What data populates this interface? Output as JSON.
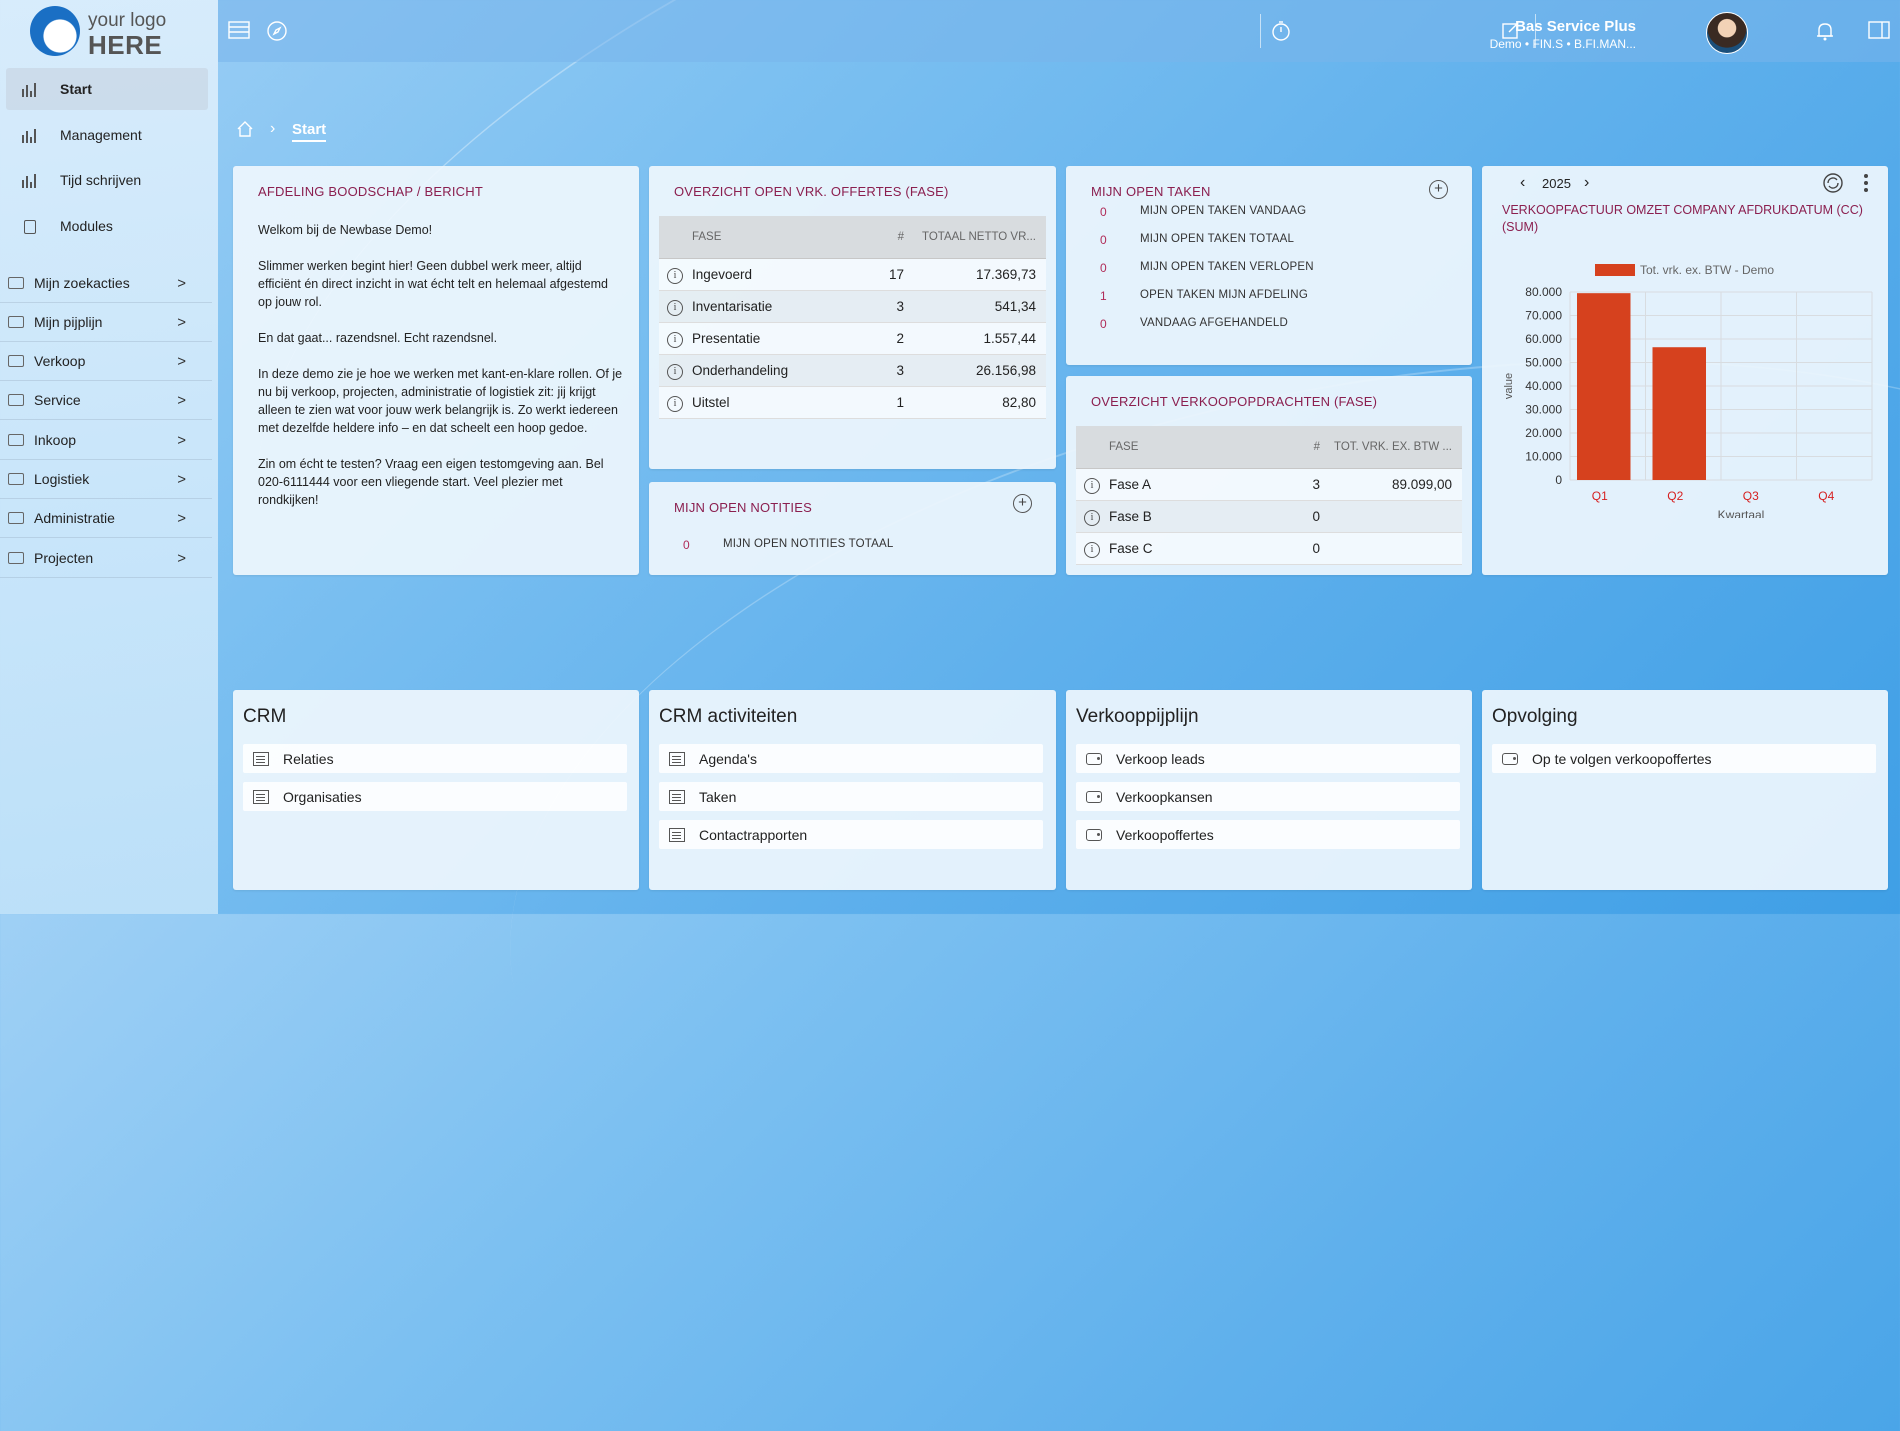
{
  "logo": {
    "line1": "your logo",
    "line2": "HERE"
  },
  "sidebar": {
    "main": [
      {
        "label": "Start",
        "active": true
      },
      {
        "label": "Management"
      },
      {
        "label": "Tijd schrijven"
      },
      {
        "label": "Modules"
      }
    ],
    "groups": [
      {
        "label": "Mijn zoekacties"
      },
      {
        "label": "Mijn pijplijn"
      },
      {
        "label": "Verkoop"
      },
      {
        "label": "Service"
      },
      {
        "label": "Inkoop"
      },
      {
        "label": "Logistiek"
      },
      {
        "label": "Administratie"
      },
      {
        "label": "Projecten"
      }
    ]
  },
  "user": {
    "name": "Bas Service Plus",
    "sub": "Demo • FIN.S • B.FI.MAN..."
  },
  "breadcrumb": {
    "current": "Start"
  },
  "message_card": {
    "title": "AFDELING BOODSCHAP / BERICHT",
    "paragraphs": [
      "Welkom bij de Newbase Demo!",
      "Slimmer werken begint hier! Geen dubbel werk meer, altijd efficiënt én direct inzicht in wat écht telt en helemaal afgestemd op jouw rol.",
      "En dat gaat... razendsnel. Echt razendsnel.",
      "In deze demo zie je hoe we werken met kant-en-klare rollen. Of je nu bij verkoop, projecten, administratie of logistiek zit: jij krijgt alleen te zien wat voor jouw werk belangrijk is. Zo werkt iedereen met dezelfde heldere info – en dat scheelt een hoop gedoe.",
      "Zin om écht te testen? Vraag een eigen testomgeving aan. Bel 020-6111444 voor een vliegende start. Veel plezier met rondkijken!"
    ]
  },
  "offertes_card": {
    "title": "OVERZICHT OPEN VRK. OFFERTES (FASE)",
    "headers": [
      "FASE",
      "#",
      "TOTAAL NETTO VR..."
    ],
    "rows": [
      {
        "fase": "Ingevoerd",
        "count": "17",
        "total": "17.369,73"
      },
      {
        "fase": "Inventarisatie",
        "count": "3",
        "total": "541,34"
      },
      {
        "fase": "Presentatie",
        "count": "2",
        "total": "1.557,44"
      },
      {
        "fase": "Onderhandeling",
        "count": "3",
        "total": "26.156,98"
      },
      {
        "fase": "Uitstel",
        "count": "1",
        "total": "82,80"
      }
    ]
  },
  "notities_card": {
    "title": "MIJN OPEN NOTITIES",
    "rows": [
      {
        "count": "0",
        "label": "MIJN OPEN NOTITIES TOTAAL"
      }
    ]
  },
  "taken_card": {
    "title": "MIJN OPEN TAKEN",
    "rows": [
      {
        "count": "0",
        "label": "MIJN OPEN TAKEN VANDAAG"
      },
      {
        "count": "0",
        "label": "MIJN OPEN TAKEN TOTAAL"
      },
      {
        "count": "0",
        "label": "MIJN OPEN TAKEN VERLOPEN"
      },
      {
        "count": "1",
        "label": "OPEN TAKEN MIJN AFDELING"
      },
      {
        "count": "0",
        "label": "VANDAAG AFGEHANDELD"
      }
    ]
  },
  "opdrachten_card": {
    "title": "OVERZICHT VERKOOPOPDRACHTEN (FASE)",
    "headers": [
      "FASE",
      "#",
      "TOT. VRK. EX. BTW ..."
    ],
    "rows": [
      {
        "fase": "Fase A",
        "count": "3",
        "total": "89.099,00"
      },
      {
        "fase": "Fase B",
        "count": "0",
        "total": ""
      },
      {
        "fase": "Fase C",
        "count": "0",
        "total": ""
      }
    ]
  },
  "chart_card": {
    "year": "2025",
    "title": "VERKOOPFACTUUR OMZET COMPANY AFDRUKDATUM (CC) (SUM)"
  },
  "chart_data": {
    "type": "bar",
    "categories": [
      "Q1",
      "Q2",
      "Q3",
      "Q4"
    ],
    "series": [
      {
        "name": "Tot. vrk. ex. BTW - Demo",
        "values": [
          79500,
          56500,
          0,
          0
        ],
        "color": "#d6411e"
      }
    ],
    "xlabel": "Kwartaal",
    "ylabel": "value",
    "ylim": [
      0,
      80000
    ],
    "yticks": [
      "80.000",
      "70.000",
      "60.000",
      "50.000",
      "40.000",
      "30.000",
      "20.000",
      "10.000",
      "0"
    ],
    "category_label_color": "#d61f1f",
    "grid": true,
    "legend": "top"
  },
  "tiles": [
    {
      "title": "CRM",
      "items": [
        {
          "label": "Relaties",
          "icon": "list-icon"
        },
        {
          "label": "Organisaties",
          "icon": "list-icon"
        }
      ]
    },
    {
      "title": "CRM activiteiten",
      "items": [
        {
          "label": "Agenda's",
          "icon": "list-icon"
        },
        {
          "label": "Taken",
          "icon": "list-icon"
        },
        {
          "label": "Contactrapporten",
          "icon": "list-icon"
        }
      ]
    },
    {
      "title": "Verkooppijplijn",
      "items": [
        {
          "label": "Verkoop leads",
          "icon": "wallet-icon"
        },
        {
          "label": "Verkoopkansen",
          "icon": "wallet-icon"
        },
        {
          "label": "Verkoopoffertes",
          "icon": "wallet-icon"
        }
      ]
    },
    {
      "title": "Opvolging",
      "items": [
        {
          "label": "Op te volgen verkoopoffertes",
          "icon": "wallet-icon"
        }
      ]
    }
  ]
}
